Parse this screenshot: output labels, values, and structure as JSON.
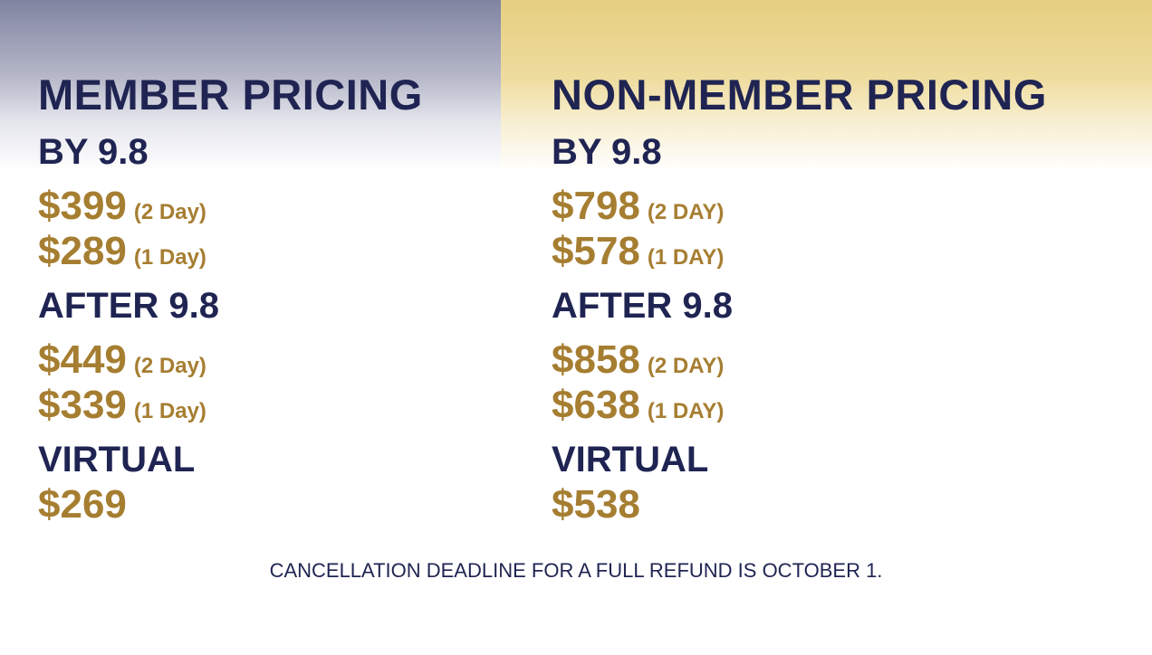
{
  "columns": [
    {
      "title": "MEMBER PRICING",
      "sections": [
        {
          "heading": "BY 9.8",
          "prices": [
            {
              "price": "$399",
              "note": "(2 Day)"
            },
            {
              "price": "$289",
              "note": "(1 Day)"
            }
          ]
        },
        {
          "heading": "AFTER 9.8",
          "prices": [
            {
              "price": "$449",
              "note": "(2 Day)"
            },
            {
              "price": "$339",
              "note": "(1 Day)"
            }
          ]
        },
        {
          "heading": "VIRTUAL",
          "prices": [
            {
              "price": "$269"
            }
          ]
        }
      ]
    },
    {
      "title": "NON-MEMBER PRICING",
      "sections": [
        {
          "heading": "BY 9.8",
          "prices": [
            {
              "price": "$798",
              "note": "(2 DAY)"
            },
            {
              "price": "$578",
              "note": "(1 DAY)"
            }
          ]
        },
        {
          "heading": "AFTER 9.8",
          "prices": [
            {
              "price": "$858",
              "note": "(2 DAY)"
            },
            {
              "price": "$638",
              "note": "(1 DAY)"
            }
          ]
        },
        {
          "heading": "VIRTUAL",
          "prices": [
            {
              "price": "$538"
            }
          ]
        }
      ]
    }
  ],
  "footer": "CANCELLATION DEADLINE FOR A FULL REFUND IS OCTOBER 1."
}
